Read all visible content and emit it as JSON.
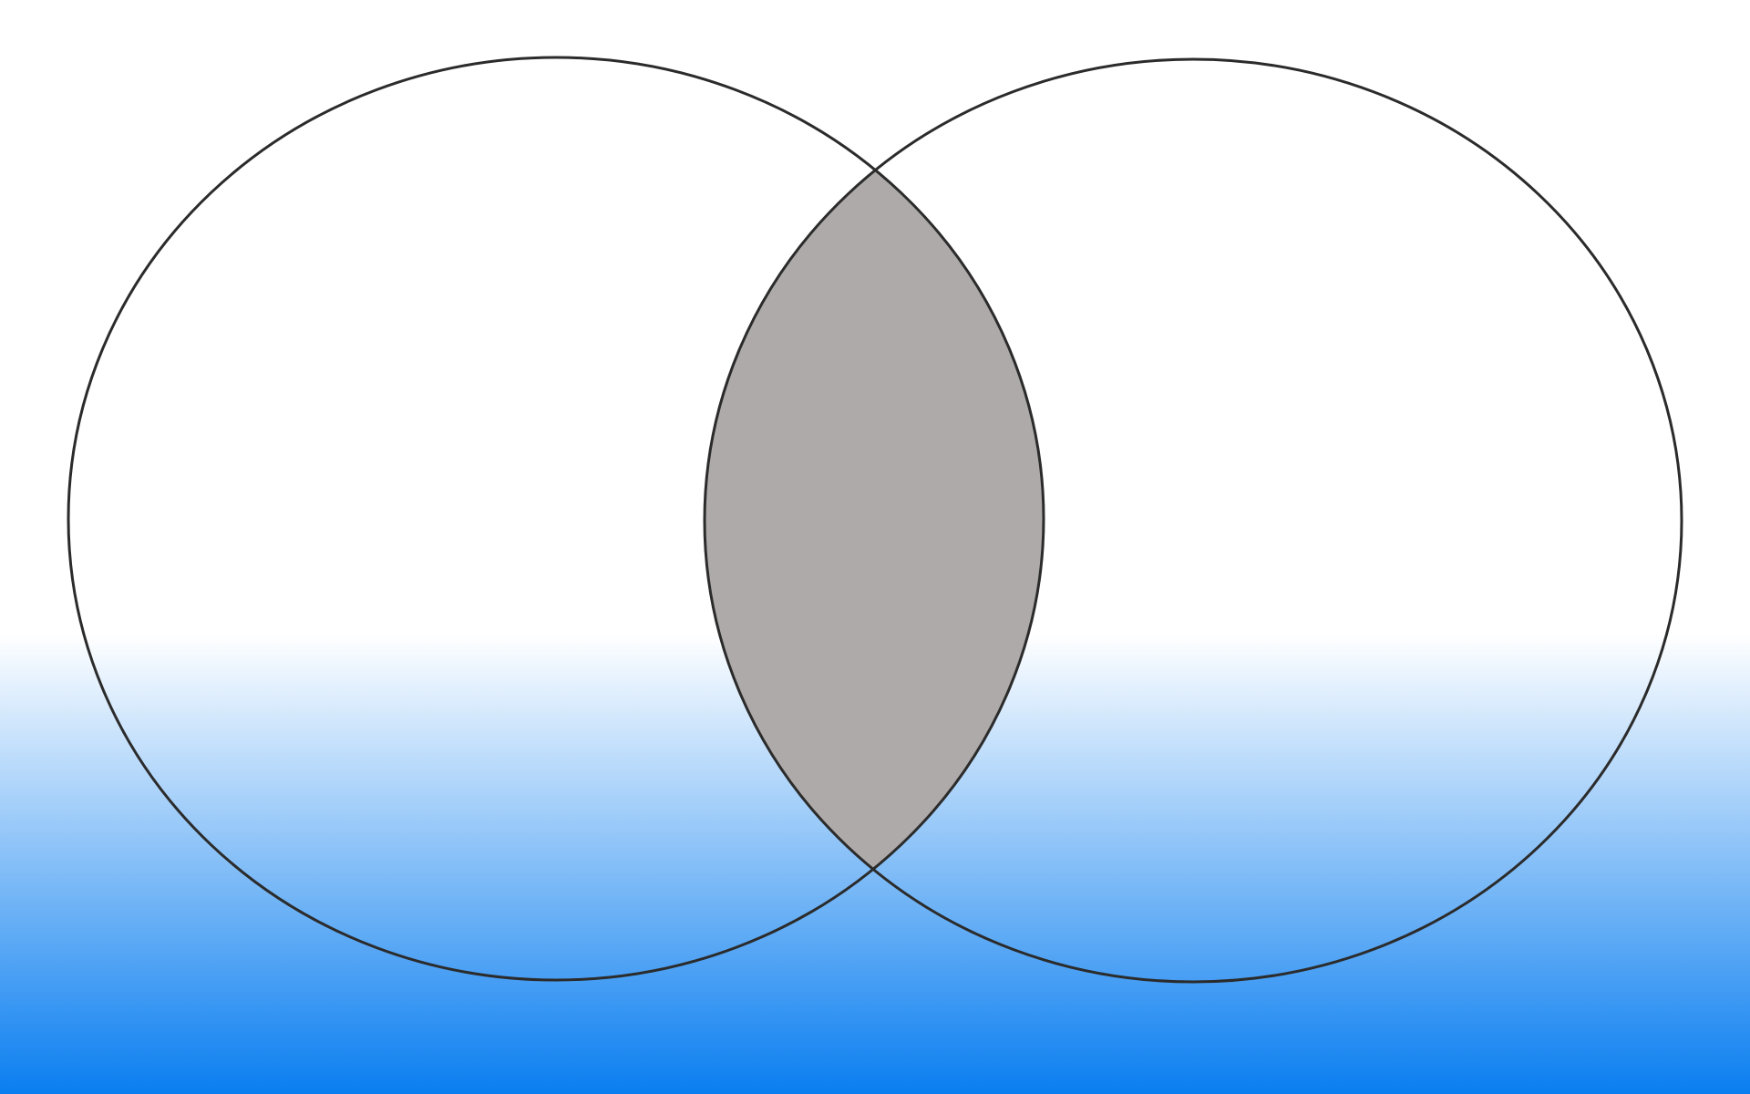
{
  "diagram": {
    "type": "venn",
    "sets": [
      {
        "id": "left-set",
        "label": ""
      },
      {
        "id": "right-set",
        "label": ""
      }
    ],
    "highlighted_region": "intersection",
    "colors": {
      "background_top": "#ffffff",
      "background_bottom": "#0a7ef0",
      "outline": "#2b2b2b",
      "intersection_fill": "#aeaaa9"
    }
  }
}
